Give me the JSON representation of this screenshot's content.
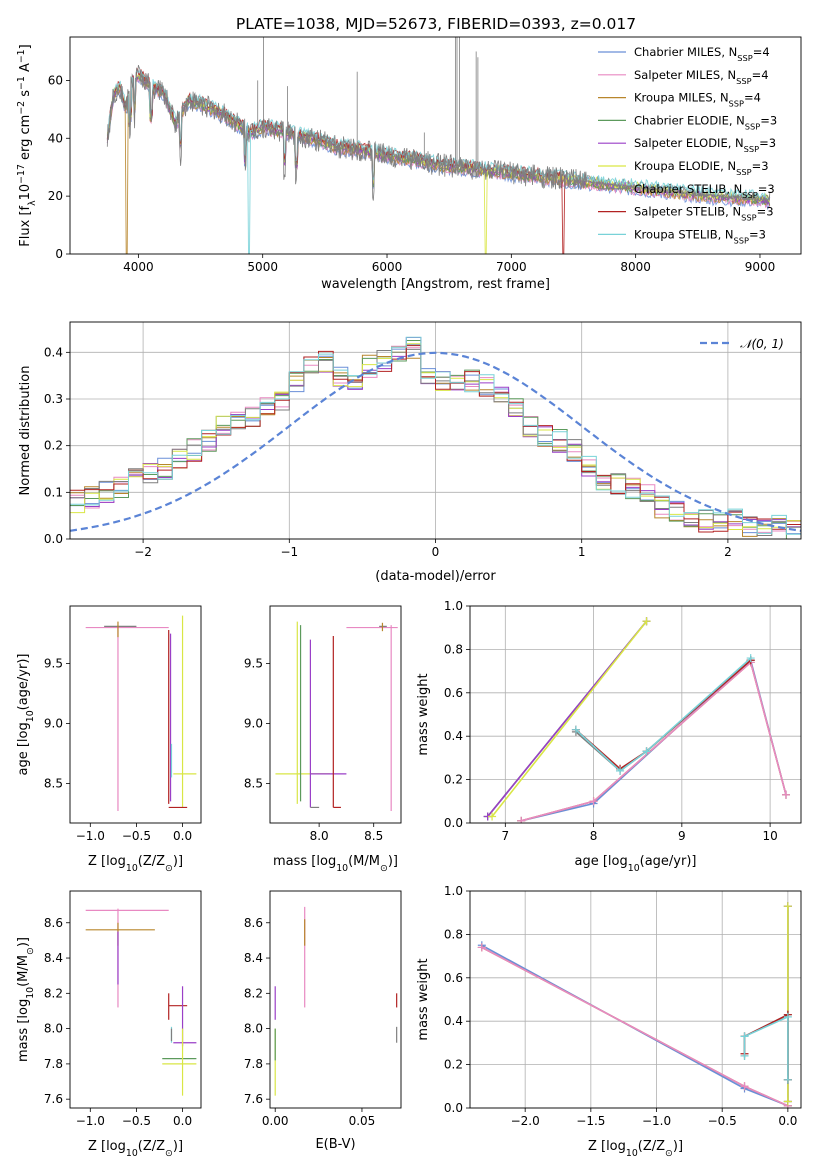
{
  "figure": {
    "title": "PLATE=1038, MJD=52673, FIBERID=0393, z=0.017"
  },
  "legend_models": [
    {
      "label": "Chabrier MILES, N",
      "sub": "SSP",
      "tail": "=4",
      "color": "#6a8fd8"
    },
    {
      "label": "Salpeter MILES, N",
      "sub": "SSP",
      "tail": "=4",
      "color": "#e889c2"
    },
    {
      "label": "Kroupa MILES, N",
      "sub": "SSP",
      "tail": "=4",
      "color": "#b8862c"
    },
    {
      "label": "Chabrier ELODIE, N",
      "sub": "SSP",
      "tail": "=3",
      "color": "#5c9a5c"
    },
    {
      "label": "Salpeter ELODIE, N",
      "sub": "SSP",
      "tail": "=3",
      "color": "#9a3fc7"
    },
    {
      "label": "Kroupa ELODIE, N",
      "sub": "SSP",
      "tail": "=3",
      "color": "#d9e645"
    },
    {
      "label": "Chabrier STELIB, N",
      "sub": "SSP",
      "tail": "=3",
      "color": "#7f7f7f"
    },
    {
      "label": "Salpeter STELIB, N",
      "sub": "SSP",
      "tail": "=3",
      "color": "#b22222"
    },
    {
      "label": "Kroupa STELIB, N",
      "sub": "SSP",
      "tail": "=3",
      "color": "#78d2d8"
    }
  ],
  "chart_data": [
    {
      "type": "line",
      "id": "spectrum",
      "xlabel": "wavelength [Angstrom, rest frame]",
      "ylabel_main": "Flux [f",
      "ylabel_lambda": "λ",
      "ylabel_mid": "10",
      "ylabel_exp1": "−17",
      "ylabel_rest": " erg cm",
      "ylabel_exp2": "−2",
      "ylabel_s": " s",
      "ylabel_exp3": "−1",
      "ylabel_A": " A",
      "ylabel_exp4": "−1",
      "ylabel_end": "]",
      "xlim": [
        3450,
        9330
      ],
      "ylim": [
        0,
        75
      ],
      "xticks": [
        4000,
        5000,
        6000,
        7000,
        8000,
        9000
      ],
      "yticks": [
        0,
        20,
        40,
        60
      ],
      "data_x": [
        3750,
        3800,
        3850,
        3900,
        3950,
        4000,
        4100,
        4200,
        4300,
        4400,
        4500,
        4600,
        4700,
        4800,
        4900,
        5000,
        5200,
        5400,
        5600,
        5800,
        6000,
        6200,
        6400,
        6600,
        6800,
        7000,
        7200,
        7400,
        7600,
        7800,
        8000,
        8200,
        8400,
        8600,
        8800,
        9000,
        9100
      ],
      "data_y": [
        40,
        55,
        58,
        50,
        60,
        62,
        58,
        56,
        45,
        53,
        52,
        50,
        48,
        45,
        42,
        44,
        42,
        40,
        37,
        36,
        34,
        33,
        31,
        30,
        29,
        28,
        27,
        26,
        25,
        24,
        23,
        22,
        21,
        20,
        19.5,
        19,
        18.5
      ],
      "model_cutoffs": [
        {
          "wave": 3900,
          "model": 2
        },
        {
          "wave": 4880,
          "model": 8
        },
        {
          "wave": 6790,
          "model": 5
        },
        {
          "wave": 7410,
          "model": 7
        }
      ]
    },
    {
      "type": "line",
      "id": "residuals",
      "xlabel": "(data-model)/error",
      "ylabel": "Normed distribution",
      "xlim": [
        -2.5,
        2.5
      ],
      "ylim": [
        0,
        0.465
      ],
      "xticks": [
        -2,
        -1,
        0,
        1,
        2
      ],
      "yticks": [
        0.0,
        0.1,
        0.2,
        0.3,
        0.4
      ],
      "gaussian_label": "𝒩(0, 1)",
      "hist_bins": [
        -2.5,
        -2.4,
        -2.3,
        -2.2,
        -2.1,
        -2.0,
        -1.9,
        -1.8,
        -1.7,
        -1.6,
        -1.5,
        -1.4,
        -1.3,
        -1.2,
        -1.1,
        -1.0,
        -0.9,
        -0.8,
        -0.7,
        -0.6,
        -0.5,
        -0.4,
        -0.3,
        -0.2,
        -0.1,
        0.0,
        0.1,
        0.2,
        0.3,
        0.4,
        0.5,
        0.6,
        0.7,
        0.8,
        0.9,
        1.0,
        1.1,
        1.2,
        1.3,
        1.4,
        1.5,
        1.6,
        1.7,
        1.8,
        1.9,
        2.0,
        2.1,
        2.2,
        2.3,
        2.4,
        2.5
      ],
      "hist_values": [
        0.08,
        0.09,
        0.1,
        0.11,
        0.13,
        0.14,
        0.15,
        0.17,
        0.19,
        0.21,
        0.24,
        0.25,
        0.26,
        0.28,
        0.3,
        0.34,
        0.37,
        0.38,
        0.35,
        0.34,
        0.37,
        0.38,
        0.39,
        0.41,
        0.35,
        0.34,
        0.33,
        0.34,
        0.33,
        0.31,
        0.28,
        0.24,
        0.22,
        0.21,
        0.19,
        0.16,
        0.13,
        0.12,
        0.11,
        0.1,
        0.07,
        0.06,
        0.05,
        0.04,
        0.04,
        0.04,
        0.03,
        0.03,
        0.03,
        0.02
      ]
    },
    {
      "type": "scatter",
      "id": "age_vs_Z",
      "xlabel": "Z [log",
      "xlabel_sub": "10",
      "xlabel_rest": "(Z/Z",
      "xlabel_sun": "⊙",
      "xlabel_end": ")]",
      "ylabel": "age  [log",
      "ylabel_sub": "10",
      "ylabel_rest": "(age/yr)]",
      "xlim": [
        -1.22,
        0.2
      ],
      "ylim": [
        8.17,
        9.98
      ],
      "xticks": [
        -1.0,
        -0.5,
        0.0
      ],
      "yticks": [
        8.5,
        9.0,
        9.5
      ],
      "segments": [
        {
          "x1": -1.05,
          "y1": 9.8,
          "x2": -0.15,
          "y2": 9.8,
          "model": 1
        },
        {
          "x1": -0.7,
          "y1": 9.82,
          "x2": -0.7,
          "y2": 8.27,
          "model": 1
        },
        {
          "x1": -0.85,
          "y1": 9.81,
          "x2": -0.5,
          "y2": 9.81,
          "model": 6
        },
        {
          "x1": -0.7,
          "y1": 9.85,
          "x2": -0.7,
          "y2": 9.72,
          "model": 2
        },
        {
          "x1": -0.1,
          "y1": 8.58,
          "x2": 0.15,
          "y2": 8.58,
          "model": 5
        },
        {
          "x1": 0.0,
          "y1": 9.9,
          "x2": 0.0,
          "y2": 8.3,
          "model": 5
        },
        {
          "x1": -0.15,
          "y1": 9.78,
          "x2": -0.15,
          "y2": 8.33,
          "model": 7
        },
        {
          "x1": -0.15,
          "y1": 8.3,
          "x2": 0.05,
          "y2": 8.3,
          "model": 7
        },
        {
          "x1": -0.13,
          "y1": 9.75,
          "x2": -0.13,
          "y2": 8.35,
          "model": 4
        },
        {
          "x1": -0.12,
          "y1": 8.83,
          "x2": -0.12,
          "y2": 8.55,
          "model": 8
        }
      ]
    },
    {
      "type": "scatter",
      "id": "age_vs_mass",
      "xlabel": "mass [log",
      "xlabel_sub": "10",
      "xlabel_rest": "(M/M",
      "xlabel_sun": "⊙",
      "xlabel_end": ")]",
      "xlim": [
        7.55,
        8.75
      ],
      "ylim": [
        8.17,
        9.98
      ],
      "xticks": [
        8.0,
        8.5
      ],
      "yticks": [
        8.5,
        9.0,
        9.5
      ],
      "segments": [
        {
          "x1": 7.6,
          "y1": 8.58,
          "x2": 8.1,
          "y2": 8.58,
          "model": 5
        },
        {
          "x1": 7.8,
          "y1": 9.85,
          "x2": 7.8,
          "y2": 8.33,
          "model": 5
        },
        {
          "x1": 7.83,
          "y1": 9.82,
          "x2": 7.83,
          "y2": 8.35,
          "model": 3
        },
        {
          "x1": 7.92,
          "y1": 9.7,
          "x2": 7.92,
          "y2": 8.3,
          "model": 4
        },
        {
          "x1": 7.92,
          "y1": 8.58,
          "x2": 8.25,
          "y2": 8.58,
          "model": 4
        },
        {
          "x1": 7.92,
          "y1": 8.3,
          "x2": 8.0,
          "y2": 8.3,
          "model": 6
        },
        {
          "x1": 8.13,
          "y1": 9.73,
          "x2": 8.13,
          "y2": 8.3,
          "model": 7
        },
        {
          "x1": 8.13,
          "y1": 8.3,
          "x2": 8.2,
          "y2": 8.3,
          "model": 7
        },
        {
          "x1": 8.25,
          "y1": 9.8,
          "x2": 8.72,
          "y2": 9.8,
          "model": 1
        },
        {
          "x1": 8.66,
          "y1": 9.82,
          "x2": 8.66,
          "y2": 8.27,
          "model": 1
        },
        {
          "x1": 8.55,
          "y1": 9.81,
          "x2": 8.62,
          "y2": 9.81,
          "model": 6
        },
        {
          "x1": 8.58,
          "y1": 9.84,
          "x2": 8.58,
          "y2": 9.77,
          "model": 2
        }
      ]
    },
    {
      "type": "line",
      "id": "weight_vs_age",
      "xlabel": "age  [log",
      "xlabel_sub": "10",
      "xlabel_rest": "(age/yr)]",
      "ylabel": "mass weight",
      "xlim": [
        6.6,
        10.35
      ],
      "ylim": [
        0,
        1.0
      ],
      "xticks": [
        7,
        8,
        9,
        10
      ],
      "yticks": [
        0.0,
        0.2,
        0.4,
        0.6,
        0.8,
        1.0
      ],
      "series": [
        {
          "model": 0,
          "x": [
            7.18,
            8.0,
            9.78,
            10.18
          ],
          "y": [
            0.01,
            0.09,
            0.75,
            0.13
          ]
        },
        {
          "model": 2,
          "x": [
            7.18,
            8.0,
            9.78,
            10.18
          ],
          "y": [
            0.01,
            0.1,
            0.74,
            0.13
          ]
        },
        {
          "model": 1,
          "x": [
            7.18,
            8.0,
            9.78,
            10.18
          ],
          "y": [
            0.01,
            0.1,
            0.74,
            0.13
          ]
        },
        {
          "model": 3,
          "x": [
            6.8,
            8.6
          ],
          "y": [
            0.03,
            0.93
          ]
        },
        {
          "model": 4,
          "x": [
            6.8,
            8.6
          ],
          "y": [
            0.03,
            0.93
          ]
        },
        {
          "model": 5,
          "x": [
            6.85,
            8.6
          ],
          "y": [
            0.03,
            0.93
          ]
        },
        {
          "model": 6,
          "x": [
            7.8,
            8.3,
            8.6,
            9.78
          ],
          "y": [
            0.42,
            0.24,
            0.33,
            0.75
          ]
        },
        {
          "model": 7,
          "x": [
            7.8,
            8.3,
            8.6,
            9.78
          ],
          "y": [
            0.43,
            0.25,
            0.33,
            0.75
          ]
        },
        {
          "model": 8,
          "x": [
            7.8,
            8.3,
            8.6,
            9.78
          ],
          "y": [
            0.43,
            0.24,
            0.33,
            0.76
          ]
        }
      ]
    },
    {
      "type": "scatter",
      "id": "mass_vs_Z",
      "xlabel": "Z [log",
      "xlabel_sub": "10",
      "xlabel_rest": "(Z/Z",
      "xlabel_sun": "⊙",
      "xlabel_end": ")]",
      "ylabel": "mass [log",
      "ylabel_sub": "10",
      "ylabel_rest": "(M/M",
      "ylabel_sun": "⊙",
      "ylabel_end": ")]",
      "xlim": [
        -1.22,
        0.2
      ],
      "ylim": [
        7.55,
        8.78
      ],
      "xticks": [
        -1.0,
        -0.5,
        0.0
      ],
      "yticks": [
        7.6,
        7.8,
        8.0,
        8.2,
        8.4,
        8.6
      ],
      "segments": [
        {
          "x1": -1.05,
          "y1": 8.67,
          "x2": -0.15,
          "y2": 8.67,
          "model": 1
        },
        {
          "x1": -0.7,
          "y1": 8.68,
          "x2": -0.7,
          "y2": 8.12,
          "model": 1
        },
        {
          "x1": -1.05,
          "y1": 8.56,
          "x2": -0.3,
          "y2": 8.56,
          "model": 2
        },
        {
          "x1": -0.7,
          "y1": 8.6,
          "x2": -0.7,
          "y2": 8.47,
          "model": 2
        },
        {
          "x1": -0.7,
          "y1": 8.55,
          "x2": -0.7,
          "y2": 8.25,
          "model": 4
        },
        {
          "x1": -0.15,
          "y1": 8.2,
          "x2": -0.15,
          "y2": 8.05,
          "model": 7
        },
        {
          "x1": -0.15,
          "y1": 8.13,
          "x2": 0.05,
          "y2": 8.13,
          "model": 7
        },
        {
          "x1": -0.1,
          "y1": 7.92,
          "x2": 0.15,
          "y2": 7.92,
          "model": 4
        },
        {
          "x1": 0.0,
          "y1": 8.24,
          "x2": 0.0,
          "y2": 7.9,
          "model": 4
        },
        {
          "x1": -0.22,
          "y1": 7.83,
          "x2": 0.15,
          "y2": 7.83,
          "model": 3
        },
        {
          "x1": -0.22,
          "y1": 7.8,
          "x2": 0.15,
          "y2": 7.8,
          "model": 5
        },
        {
          "x1": 0.0,
          "y1": 8.0,
          "x2": 0.0,
          "y2": 7.62,
          "model": 5
        },
        {
          "x1": -0.12,
          "y1": 8.01,
          "x2": -0.12,
          "y2": 7.92,
          "model": 8
        },
        {
          "x1": -0.12,
          "y1": 8.0,
          "x2": -0.12,
          "y2": 7.93,
          "model": 6
        }
      ]
    },
    {
      "type": "scatter",
      "id": "mass_vs_ebv",
      "xlabel": "E(B-V)",
      "xlim": [
        -0.003,
        0.0725
      ],
      "ylim": [
        7.55,
        8.78
      ],
      "xticks": [
        0.0,
        0.05
      ],
      "yticks": [
        7.6,
        7.8,
        8.0,
        8.2,
        8.4,
        8.6
      ],
      "segments": [
        {
          "x1": 0.0,
          "y1": 8.24,
          "x2": 0.0,
          "y2": 8.05,
          "model": 4
        },
        {
          "x1": 0.0,
          "y1": 8.0,
          "x2": 0.0,
          "y2": 7.62,
          "model": 5
        },
        {
          "x1": 0.0,
          "y1": 8.0,
          "x2": 0.0,
          "y2": 7.82,
          "model": 3
        },
        {
          "x1": 0.017,
          "y1": 8.69,
          "x2": 0.017,
          "y2": 8.12,
          "model": 1
        },
        {
          "x1": 0.017,
          "y1": 8.62,
          "x2": 0.017,
          "y2": 8.47,
          "model": 2
        },
        {
          "x1": 0.07,
          "y1": 8.2,
          "x2": 0.07,
          "y2": 8.12,
          "model": 7
        },
        {
          "x1": 0.07,
          "y1": 8.01,
          "x2": 0.07,
          "y2": 7.92,
          "model": 6
        }
      ]
    },
    {
      "type": "line",
      "id": "weight_vs_Z",
      "xlabel": "Z [log",
      "xlabel_sub": "10",
      "xlabel_rest": "(Z/Z",
      "xlabel_sun": "⊙",
      "xlabel_end": ")]",
      "ylabel": "mass weight",
      "xlim": [
        -2.42,
        0.1
      ],
      "ylim": [
        0,
        1.0
      ],
      "xticks": [
        -2.0,
        -1.5,
        -1.0,
        -0.5,
        0.0
      ],
      "yticks": [
        0.0,
        0.2,
        0.4,
        0.6,
        0.8,
        1.0
      ],
      "series": [
        {
          "model": 0,
          "x": [
            -2.33,
            -0.33,
            0.0
          ],
          "y": [
            0.75,
            0.09,
            0.01
          ]
        },
        {
          "model": 2,
          "x": [
            -2.33,
            -0.33,
            0.0
          ],
          "y": [
            0.74,
            0.1,
            0.01
          ]
        },
        {
          "model": 1,
          "x": [
            -2.33,
            -0.33,
            0.0
          ],
          "y": [
            0.74,
            0.1,
            0.01
          ]
        },
        {
          "model": 3,
          "x": [
            0.0,
            0.0
          ],
          "y": [
            0.93,
            0.03
          ]
        },
        {
          "model": 4,
          "x": [
            0.0,
            0.0
          ],
          "y": [
            0.93,
            0.03
          ]
        },
        {
          "model": 5,
          "x": [
            0.0,
            0.0
          ],
          "y": [
            0.93,
            0.03
          ]
        },
        {
          "model": 6,
          "x": [
            -0.33,
            -0.33,
            0.0,
            0.0
          ],
          "y": [
            0.24,
            0.33,
            0.43,
            0.13
          ]
        },
        {
          "model": 7,
          "x": [
            -0.33,
            -0.33,
            0.0,
            0.0
          ],
          "y": [
            0.25,
            0.33,
            0.43,
            0.13
          ]
        },
        {
          "model": 8,
          "x": [
            -0.33,
            -0.33,
            0.0,
            0.0
          ],
          "y": [
            0.24,
            0.33,
            0.42,
            0.13
          ]
        }
      ]
    }
  ]
}
